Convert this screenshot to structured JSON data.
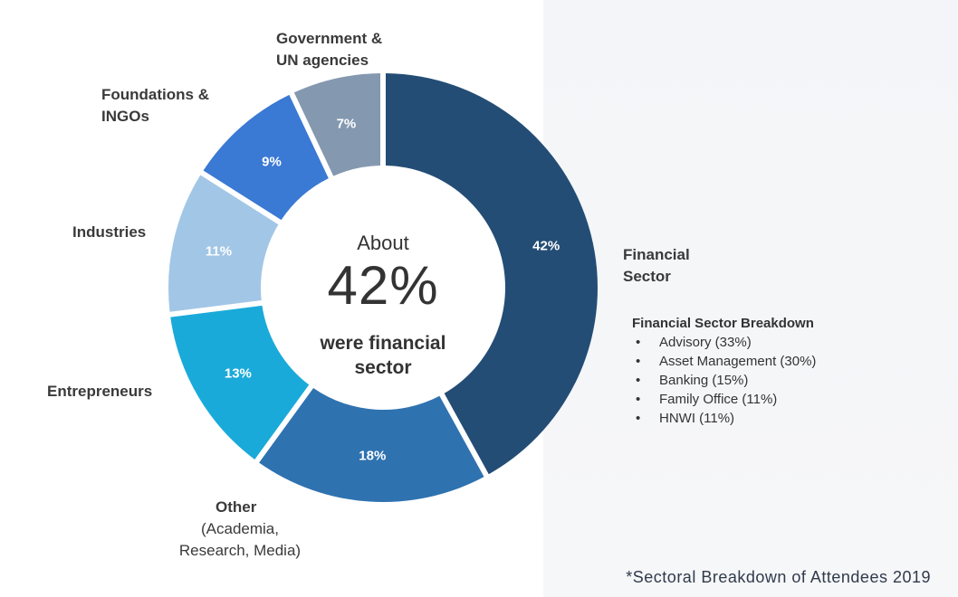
{
  "chart_data": {
    "type": "pie",
    "variant": "donut",
    "categories": [
      "Financial Sector",
      "Other",
      "Entrepreneurs",
      "Industries",
      "Foundations & INGOs",
      "Government & UN agencies"
    ],
    "values": [
      42,
      18,
      13,
      11,
      9,
      7
    ],
    "value_labels": [
      "42%",
      "18%",
      "13%",
      "11%",
      "9%",
      "7%"
    ],
    "colors": [
      "#234d75",
      "#2f72b0",
      "#1aaad9",
      "#a2c6e6",
      "#3a79d4",
      "#8498b0"
    ]
  },
  "labels": {
    "financial": [
      "Financial",
      "Sector"
    ],
    "other": "Other",
    "other_sub": [
      "(Academia,",
      "Research, Media)"
    ],
    "entrepreneurs": "Entrepreneurs",
    "industries": "Industries",
    "foundations": [
      "Foundations &",
      "INGOs"
    ],
    "government": [
      "Government &",
      "UN agencies"
    ]
  },
  "center": {
    "about": "About",
    "value": "42%",
    "caption": [
      "were financial",
      "sector"
    ]
  },
  "breakdown": {
    "title": "Financial Sector Breakdown",
    "bullet": "•",
    "items": [
      "Advisory (33%)",
      "Asset Management (30%)",
      "Banking (15%)",
      "Family Office (11%)",
      "HNWI (11%)"
    ]
  },
  "footnote": "*Sectoral Breakdown of Attendees 2019"
}
